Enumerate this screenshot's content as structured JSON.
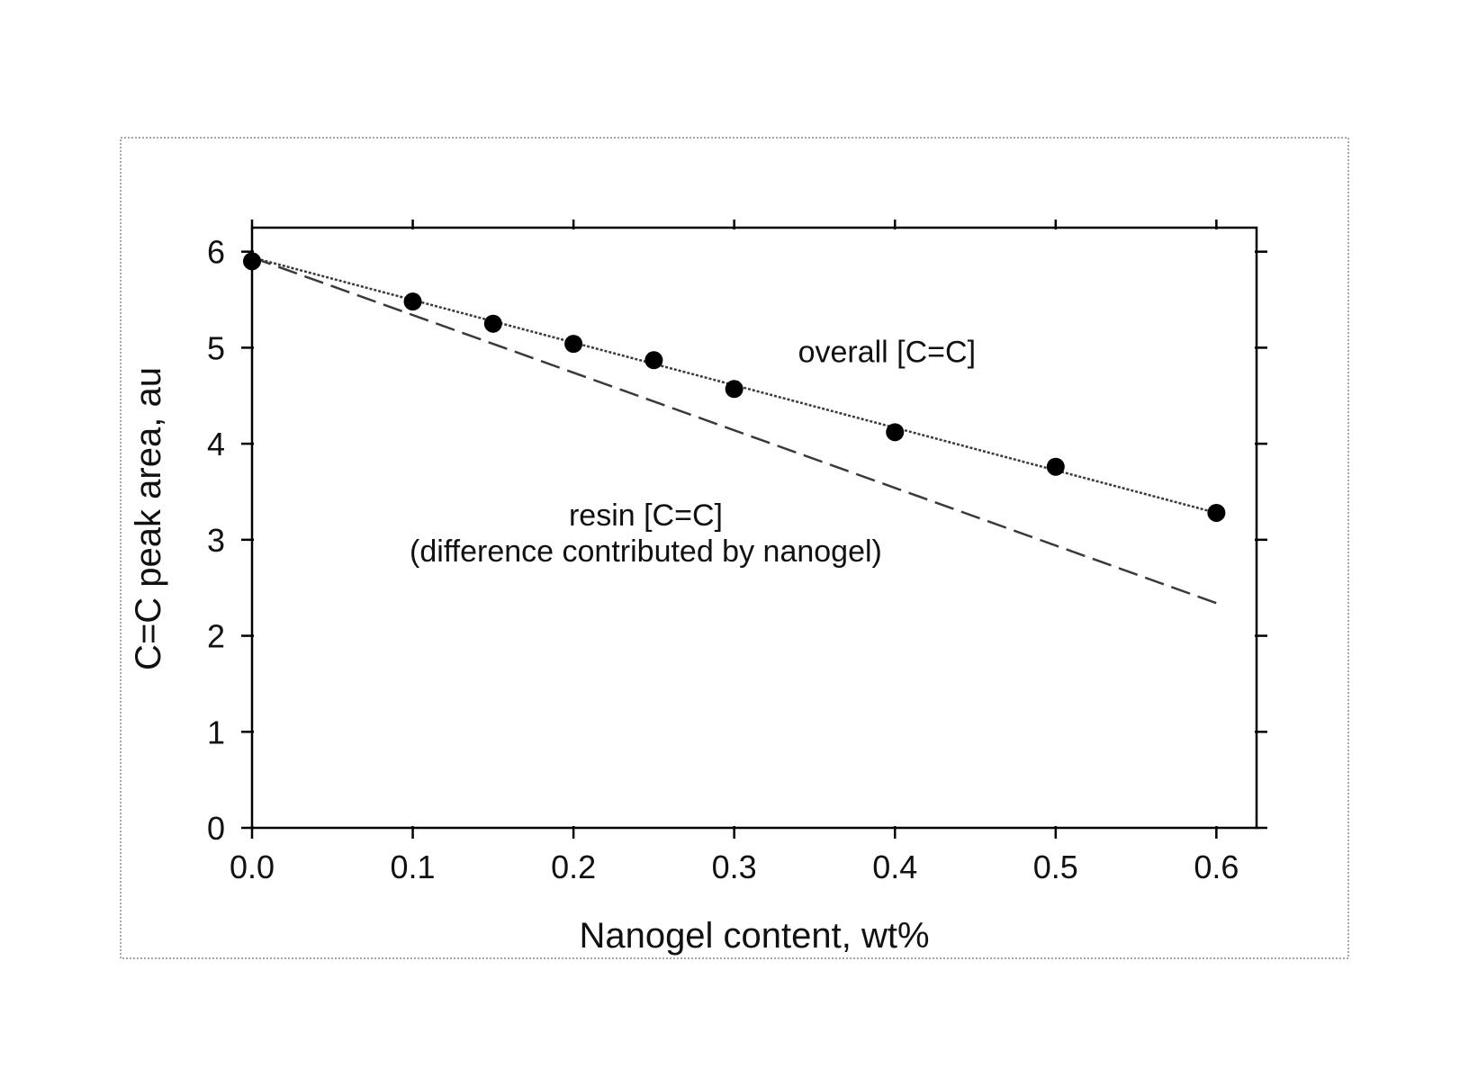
{
  "chart_data": {
    "type": "scatter",
    "title": "",
    "xlabel": "Nanogel content, wt%",
    "ylabel": "C=C peak area, au",
    "xlim": [
      0,
      0.625
    ],
    "ylim": [
      0,
      6.25
    ],
    "x_ticks": [
      0.0,
      0.1,
      0.2,
      0.3,
      0.4,
      0.5,
      0.6
    ],
    "x_tick_labels": [
      "0.0",
      "0.1",
      "0.2",
      "0.3",
      "0.4",
      "0.5",
      "0.6"
    ],
    "y_ticks": [
      0,
      1,
      2,
      3,
      4,
      5,
      6
    ],
    "y_tick_labels": [
      "0",
      "1",
      "2",
      "3",
      "4",
      "5",
      "6"
    ],
    "grid": false,
    "series": [
      {
        "style": "points",
        "x": [
          0.0,
          0.1,
          0.15,
          0.2,
          0.25,
          0.3,
          0.4,
          0.5,
          0.6
        ],
        "y": [
          5.9,
          5.48,
          5.25,
          5.04,
          4.87,
          4.57,
          4.12,
          3.76,
          3.28
        ]
      },
      {
        "style": "dotted-line",
        "x": [
          0.0,
          0.6
        ],
        "y": [
          5.94,
          3.28
        ]
      },
      {
        "style": "dashed-line",
        "x": [
          0.0,
          0.6
        ],
        "y": [
          5.94,
          2.34
        ]
      }
    ],
    "annotations": [
      {
        "lines": [
          "overall [C=C]"
        ],
        "x": 0.395,
        "y": 4.85
      },
      {
        "lines": [
          "resin [C=C]",
          "(difference contributed by nanogel)"
        ],
        "x": 0.245,
        "y": 3.15
      }
    ]
  }
}
